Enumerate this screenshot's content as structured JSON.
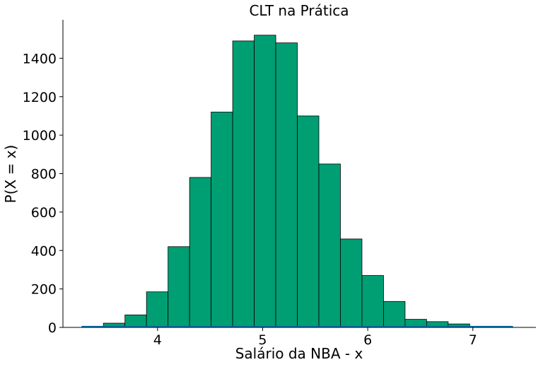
{
  "chart_data": {
    "type": "bar",
    "title": "CLT na Prática",
    "xlabel": "Salário da NBA - x",
    "ylabel": "P(X = x)",
    "xlim": [
      3.1,
      7.6
    ],
    "ylim": [
      0,
      1600
    ],
    "xticks": [
      4,
      5,
      6,
      7
    ],
    "yticks": [
      0,
      200,
      400,
      600,
      800,
      1000,
      1200,
      1400
    ],
    "grid": false,
    "colors": {
      "bar_fill": "#009e73",
      "bar_edge": "#000000",
      "density_line": "#0072b2"
    },
    "bins": [
      {
        "x0": 3.28,
        "x1": 3.485,
        "count": 5
      },
      {
        "x0": 3.485,
        "x1": 3.69,
        "count": 22
      },
      {
        "x0": 3.69,
        "x1": 3.895,
        "count": 65
      },
      {
        "x0": 3.895,
        "x1": 4.1,
        "count": 185
      },
      {
        "x0": 4.1,
        "x1": 4.305,
        "count": 420
      },
      {
        "x0": 4.305,
        "x1": 4.51,
        "count": 780
      },
      {
        "x0": 4.51,
        "x1": 4.715,
        "count": 1120
      },
      {
        "x0": 4.715,
        "x1": 4.92,
        "count": 1490
      },
      {
        "x0": 4.92,
        "x1": 5.125,
        "count": 1520
      },
      {
        "x0": 5.125,
        "x1": 5.33,
        "count": 1480
      },
      {
        "x0": 5.33,
        "x1": 5.535,
        "count": 1100
      },
      {
        "x0": 5.535,
        "x1": 5.74,
        "count": 850
      },
      {
        "x0": 5.74,
        "x1": 5.945,
        "count": 460
      },
      {
        "x0": 5.945,
        "x1": 6.15,
        "count": 270
      },
      {
        "x0": 6.15,
        "x1": 6.355,
        "count": 135
      },
      {
        "x0": 6.355,
        "x1": 6.56,
        "count": 42
      },
      {
        "x0": 6.56,
        "x1": 6.765,
        "count": 30
      },
      {
        "x0": 6.765,
        "x1": 6.97,
        "count": 18
      },
      {
        "x0": 6.97,
        "x1": 7.175,
        "count": 5
      },
      {
        "x0": 7.175,
        "x1": 7.38,
        "count": 3
      }
    ],
    "density_line": {
      "x": [
        3.28,
        7.38
      ],
      "y": [
        3,
        3
      ]
    }
  }
}
